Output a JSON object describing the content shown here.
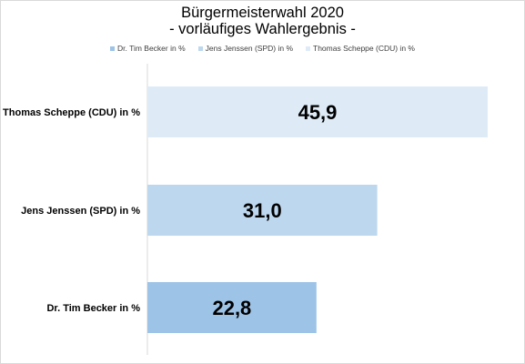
{
  "chart_data": {
    "type": "bar",
    "orientation": "horizontal",
    "title": "Bürgermeisterwahl 2020",
    "subtitle": "- vorläufiges Wahlergebnis -",
    "categories": [
      "Thomas Scheppe (CDU) in %",
      "Jens Jenssen (SPD) in %",
      "Dr. Tim Becker in %"
    ],
    "values": [
      45.9,
      31.0,
      22.8
    ],
    "value_labels": [
      "45,9",
      "31,0",
      "22,8"
    ],
    "colors": [
      "#deebf7",
      "#bdd7ee",
      "#9dc3e6"
    ],
    "legend": {
      "position": "top",
      "entries": [
        "Dr. Tim Becker in %",
        "Jens Jenssen (SPD) in %",
        "Thomas Scheppe (CDU) in %"
      ],
      "colors": [
        "#9dc3e6",
        "#bdd7ee",
        "#deebf7"
      ]
    },
    "xlim": [
      0,
      50
    ],
    "grid": false
  }
}
